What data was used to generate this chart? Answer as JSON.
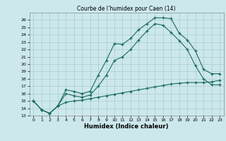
{
  "title": "Courbe de l’humidex pour Caen (14)",
  "xlabel": "Humidex (Indice chaleur)",
  "bg_color": "#cce8ec",
  "grid_color": "#aacccc",
  "line_color": "#1a6b5e",
  "xlim": [
    -0.5,
    23.5
  ],
  "ylim": [
    13,
    27
  ],
  "yticks": [
    13,
    14,
    15,
    16,
    17,
    18,
    19,
    20,
    21,
    22,
    23,
    24,
    25,
    26
  ],
  "xticks": [
    0,
    1,
    2,
    3,
    4,
    5,
    6,
    7,
    8,
    9,
    10,
    11,
    12,
    13,
    14,
    15,
    16,
    17,
    18,
    19,
    20,
    21,
    22,
    23
  ],
  "line1_x": [
    0,
    1,
    2,
    3,
    4,
    5,
    6,
    7,
    8,
    9,
    10,
    11,
    12,
    13,
    14,
    15,
    16,
    17,
    18,
    19,
    20,
    21,
    22,
    23
  ],
  "line1_y": [
    15,
    13.8,
    13.3,
    14.3,
    16.5,
    16.3,
    16.0,
    16.3,
    18.5,
    20.5,
    22.8,
    22.7,
    23.5,
    24.7,
    25.5,
    26.3,
    26.3,
    26.2,
    24.2,
    23.3,
    21.8,
    19.3,
    18.7,
    18.7
  ],
  "line2_x": [
    0,
    1,
    2,
    3,
    4,
    5,
    6,
    7,
    8,
    9,
    10,
    11,
    12,
    13,
    14,
    15,
    16,
    17,
    18,
    19,
    20,
    21,
    22,
    23
  ],
  "line2_y": [
    15,
    13.8,
    13.3,
    14.3,
    16.0,
    15.7,
    15.5,
    15.8,
    17.0,
    18.5,
    20.5,
    21.0,
    22.0,
    23.3,
    24.5,
    25.5,
    25.3,
    24.3,
    23.2,
    22.0,
    19.8,
    18.0,
    17.2,
    17.2
  ],
  "line3_x": [
    0,
    1,
    2,
    3,
    4,
    5,
    6,
    7,
    8,
    9,
    10,
    11,
    12,
    13,
    14,
    15,
    16,
    17,
    18,
    19,
    20,
    21,
    22,
    23
  ],
  "line3_y": [
    15,
    13.8,
    13.3,
    14.3,
    14.8,
    15.0,
    15.1,
    15.3,
    15.5,
    15.7,
    15.9,
    16.1,
    16.3,
    16.5,
    16.7,
    16.9,
    17.1,
    17.3,
    17.4,
    17.5,
    17.5,
    17.5,
    17.6,
    17.8
  ]
}
